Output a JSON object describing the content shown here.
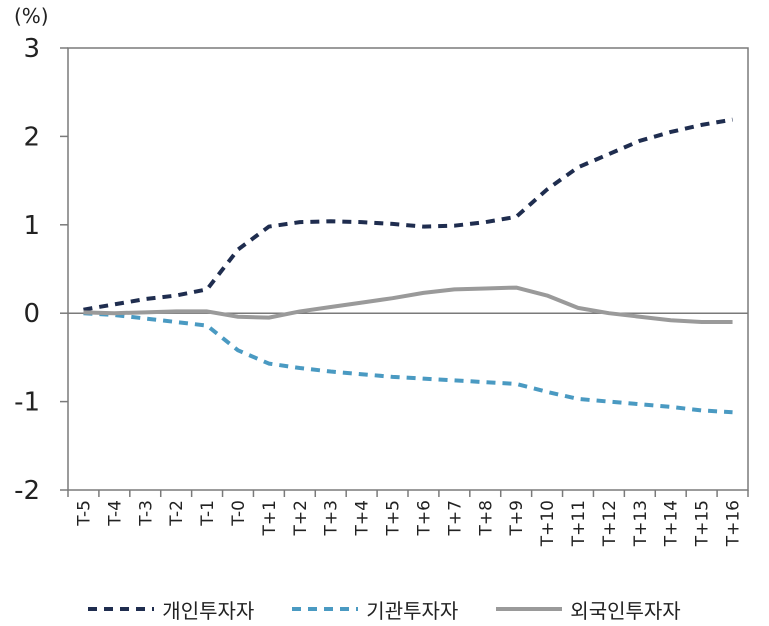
{
  "chart_data": {
    "type": "line",
    "unit_label": "(%)",
    "ylim": [
      -2,
      3
    ],
    "yticks": [
      "3",
      "2",
      "1",
      "0",
      "-1",
      "-2"
    ],
    "categories": [
      "T-5",
      "T-4",
      "T-3",
      "T-2",
      "T-1",
      "T-0",
      "T+1",
      "T+2",
      "T+3",
      "T+4",
      "T+5",
      "T+6",
      "T+7",
      "T+8",
      "T+9",
      "T+10",
      "T+11",
      "T+12",
      "T+13",
      "T+14",
      "T+15",
      "T+16"
    ],
    "series": [
      {
        "name": "개인투자자",
        "color": "#1f2d4f",
        "dash": "dashed",
        "values": [
          0.04,
          0.1,
          0.16,
          0.2,
          0.27,
          0.72,
          0.98,
          1.03,
          1.04,
          1.03,
          1.01,
          0.98,
          0.99,
          1.03,
          1.09,
          1.4,
          1.65,
          1.8,
          1.95,
          2.05,
          2.13,
          2.19
        ]
      },
      {
        "name": "기관투자자",
        "color": "#4a9ac2",
        "dash": "dashed",
        "values": [
          0.0,
          -0.02,
          -0.06,
          -0.1,
          -0.14,
          -0.42,
          -0.57,
          -0.62,
          -0.66,
          -0.69,
          -0.72,
          -0.74,
          -0.76,
          -0.78,
          -0.8,
          -0.89,
          -0.97,
          -1.0,
          -1.03,
          -1.06,
          -1.1,
          -1.12
        ]
      },
      {
        "name": "외국인투자자",
        "color": "#9a9a9a",
        "dash": "solid",
        "values": [
          0.01,
          0.0,
          0.01,
          0.02,
          0.02,
          -0.04,
          -0.05,
          0.02,
          0.07,
          0.12,
          0.17,
          0.23,
          0.27,
          0.28,
          0.29,
          0.2,
          0.06,
          0.0,
          -0.04,
          -0.08,
          -0.1,
          -0.1
        ]
      }
    ]
  }
}
